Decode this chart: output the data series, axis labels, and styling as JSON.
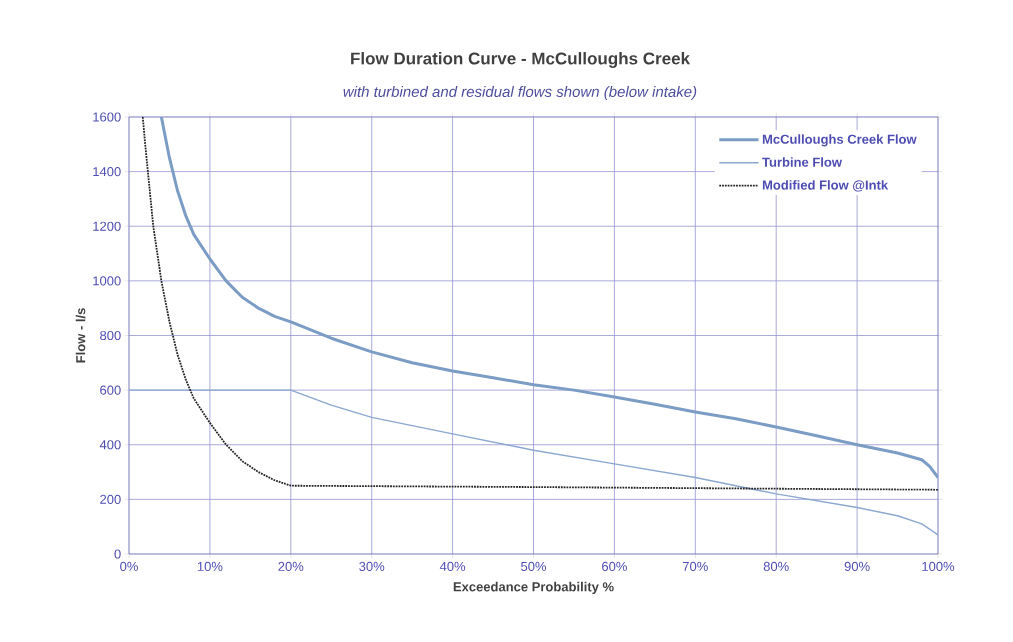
{
  "chart_data": {
    "type": "line",
    "title": "Flow Duration Curve - McCulloughs Creek",
    "subtitle": "with turbined and residual flows shown (below intake)",
    "xlabel": "Exceedance Probability %",
    "ylabel": "Flow - l/s",
    "xlim": [
      0,
      100
    ],
    "ylim": [
      0,
      1600
    ],
    "xticks": [
      {
        "value": 0,
        "label": "0%"
      },
      {
        "value": 10,
        "label": "10%"
      },
      {
        "value": 20,
        "label": "20%"
      },
      {
        "value": 30,
        "label": "30%"
      },
      {
        "value": 40,
        "label": "40%"
      },
      {
        "value": 50,
        "label": "50%"
      },
      {
        "value": 60,
        "label": "60%"
      },
      {
        "value": 70,
        "label": "70%"
      },
      {
        "value": 80,
        "label": "80%"
      },
      {
        "value": 90,
        "label": "90%"
      },
      {
        "value": 100,
        "label": "100%"
      }
    ],
    "yticks": [
      0,
      200,
      400,
      600,
      800,
      1000,
      1200,
      1400,
      1600
    ],
    "grid": true,
    "legend": "top right",
    "series": [
      {
        "name": "McCulloughs Creek Flow",
        "color": "#7b9cc4",
        "line_style": "solid",
        "x": [
          4,
          5,
          6,
          7,
          8,
          10,
          12,
          14,
          16,
          18,
          20,
          25,
          30,
          35,
          40,
          45,
          50,
          55,
          60,
          65,
          70,
          75,
          80,
          85,
          90,
          95,
          98,
          99,
          100
        ],
        "values": [
          1600,
          1450,
          1330,
          1240,
          1170,
          1080,
          1000,
          940,
          900,
          870,
          850,
          790,
          740,
          700,
          670,
          645,
          620,
          600,
          575,
          548,
          520,
          495,
          465,
          433,
          400,
          370,
          345,
          320,
          280
        ]
      },
      {
        "name": "Turbine Flow",
        "color": "#8aa8d0",
        "line_style": "solid",
        "x": [
          0,
          20,
          25,
          30,
          40,
          50,
          60,
          70,
          80,
          90,
          95,
          98,
          100
        ],
        "values": [
          600,
          600,
          545,
          500,
          440,
          380,
          330,
          280,
          220,
          170,
          140,
          110,
          70
        ]
      },
      {
        "name": "Modified Flow @Intk",
        "color": "#222222",
        "line_style": "dotted",
        "x": [
          1.7,
          2,
          3,
          4,
          5,
          6,
          7,
          8,
          10,
          12,
          14,
          16,
          18,
          20,
          50,
          100
        ],
        "values": [
          1600,
          1500,
          1200,
          1000,
          850,
          730,
          640,
          570,
          480,
          400,
          340,
          300,
          270,
          250,
          245,
          235
        ]
      }
    ]
  }
}
